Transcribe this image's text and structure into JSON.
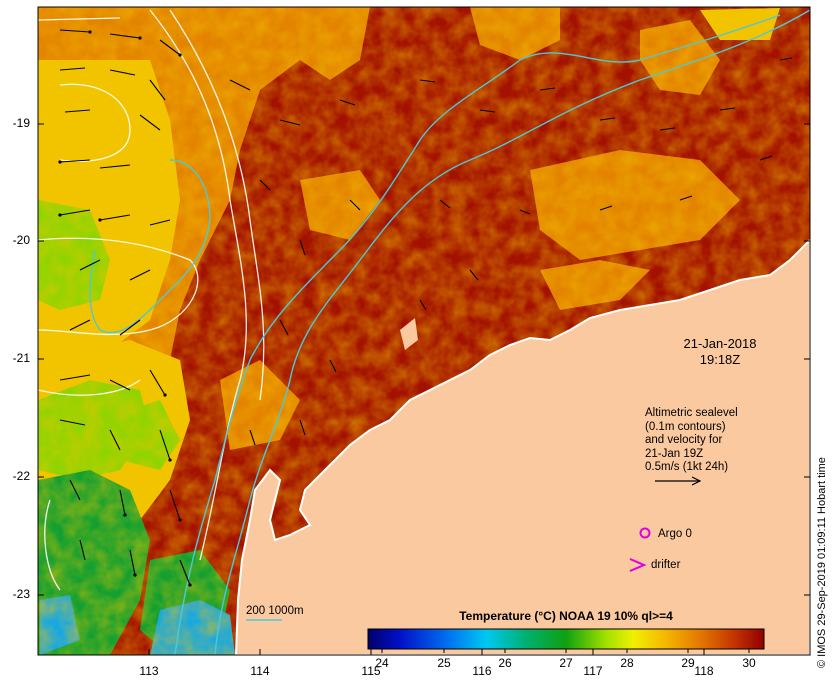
{
  "map": {
    "date": "21-Jan-2018",
    "time": "19:18Z",
    "legend_lines": [
      "Altimetric sealevel",
      "(0.1m contours)",
      "and velocity for",
      "21-Jan 19Z",
      "0.5m/s (1kt 24h)"
    ],
    "argo_label": "Argo 0",
    "drifter_label": "drifter",
    "depth_label": "200  1000m",
    "colorbar_title": "Temperature (°C) NOAA 19 10% ql>=4",
    "colorbar_ticks": [
      "24",
      "25",
      "26",
      "27",
      "28",
      "29",
      "30"
    ],
    "lat_ticks": [
      "-19",
      "-20",
      "-21",
      "-22",
      "-23"
    ],
    "lon_ticks": [
      "113",
      "114",
      "115",
      "116",
      "117",
      "118"
    ],
    "credit": "© IMOS 29-Sep-2019 01:09:11 Hobart time",
    "colors": {
      "land": "#fbc9a0",
      "sst_hot": "#a01000",
      "sst_warm": "#e88a00",
      "sst_mid": "#f5d000",
      "sst_cool": "#7ed400",
      "sst_cold": "#00a040",
      "contour_depth": "#4ec8d8",
      "sealevel_contour": "#ffffff",
      "argo_marker": "#e000e0"
    }
  }
}
